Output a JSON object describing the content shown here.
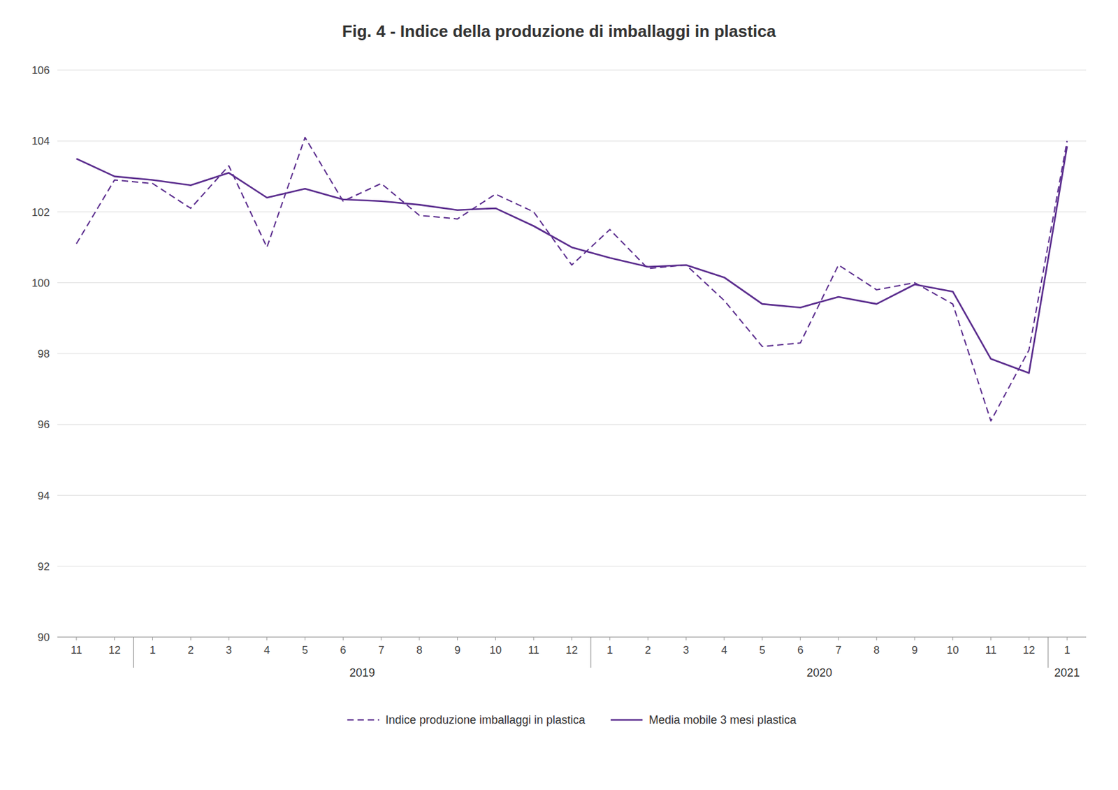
{
  "chart_data": {
    "type": "line",
    "title": "Fig. 4  - Indice della produzione di imballaggi in plastica",
    "categories": [
      "11",
      "12",
      "1",
      "2",
      "3",
      "4",
      "5",
      "6",
      "7",
      "8",
      "9",
      "10",
      "11",
      "12",
      "1",
      "2",
      "3",
      "4",
      "5",
      "6",
      "7",
      "8",
      "9",
      "10",
      "11",
      "12",
      "1"
    ],
    "series": [
      {
        "name": "Indice produzione imballaggi in plastica",
        "color": "#5B2D8E",
        "line_style": "dashed",
        "values": [
          101.1,
          102.9,
          102.8,
          102.1,
          103.3,
          101.0,
          104.1,
          102.3,
          102.8,
          101.9,
          101.8,
          102.5,
          102.0,
          100.5,
          101.5,
          100.4,
          100.5,
          99.5,
          98.2,
          98.3,
          100.5,
          99.8,
          100.0,
          99.4,
          96.1,
          98.1,
          104.0
        ]
      },
      {
        "name": "Media mobile 3 mesi plastica",
        "color": "#5B2D8E",
        "line_style": "solid",
        "values": [
          103.5,
          103.0,
          102.9,
          102.75,
          103.1,
          102.4,
          102.65,
          102.35,
          102.3,
          102.2,
          102.05,
          102.1,
          101.6,
          101.0,
          100.7,
          100.45,
          100.5,
          100.15,
          99.4,
          99.3,
          99.6,
          99.4,
          99.95,
          99.75,
          97.85,
          97.45,
          103.85
        ]
      }
    ],
    "annotations": [
      "2019",
      "2020",
      "2021"
    ],
    "ylim": [
      90,
      106
    ],
    "yticks": [
      90,
      92,
      94,
      96,
      98,
      100,
      102,
      104,
      106
    ],
    "grid": true,
    "legend": "bottom"
  }
}
